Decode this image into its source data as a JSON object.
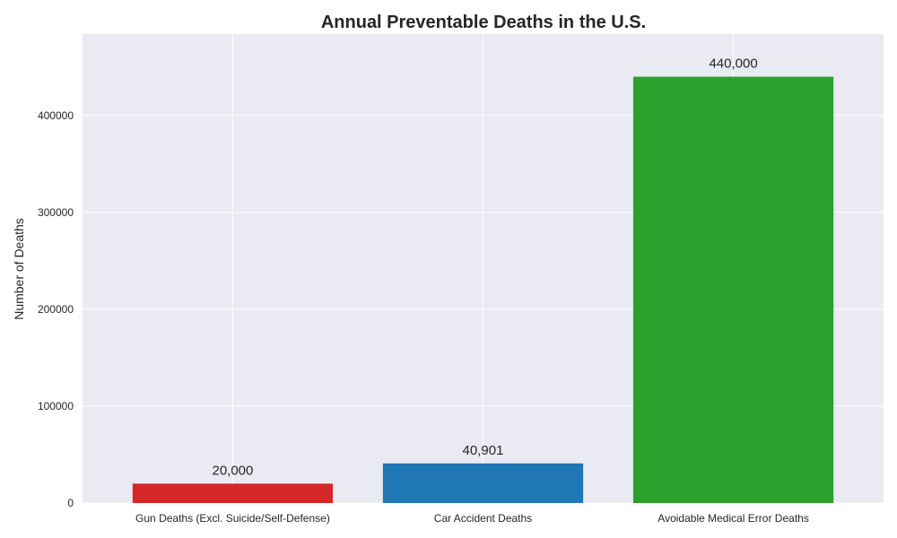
{
  "chart_data": {
    "type": "bar",
    "title": "Annual Preventable Deaths in the U.S.",
    "xlabel": "",
    "ylabel": "Number of Deaths",
    "categories": [
      "Gun Deaths (Excl. Suicide/Self-Defense)",
      "Car Accident Deaths",
      "Avoidable Medical Error Deaths"
    ],
    "values": [
      20000,
      40901,
      440000
    ],
    "data_labels": [
      "20,000",
      "40,901",
      "440,000"
    ],
    "colors": [
      "#d62728",
      "#1f77b4",
      "#2ca02c"
    ],
    "ylim": [
      0,
      484000
    ],
    "yticks": [
      0,
      100000,
      200000,
      300000,
      400000
    ],
    "ytick_labels": [
      "0",
      "100000",
      "200000",
      "300000",
      "400000"
    ],
    "grid": true,
    "background": "#eaeaf2",
    "grid_color": "#ffffff"
  }
}
